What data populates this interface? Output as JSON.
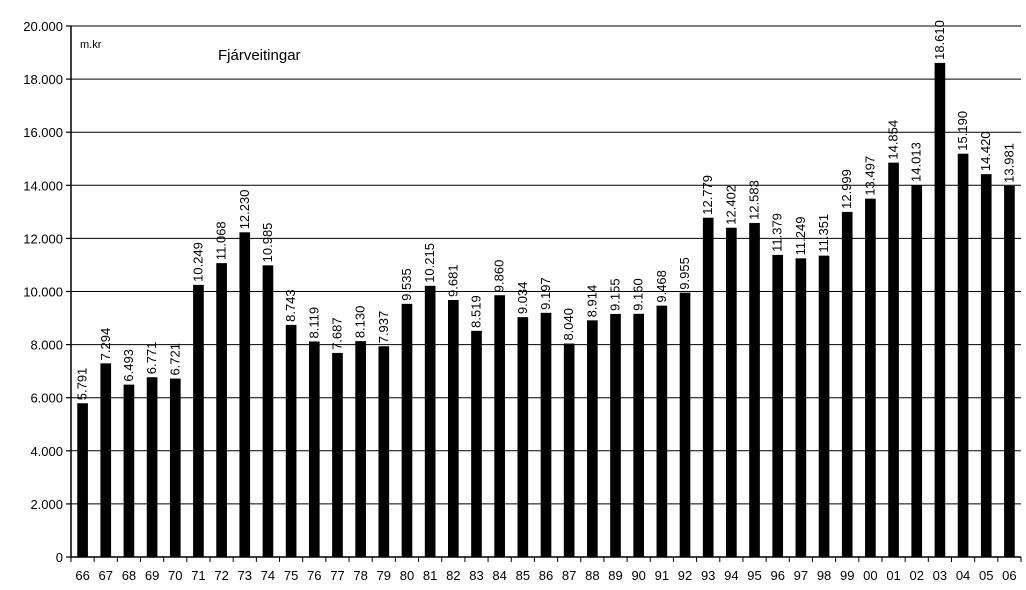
{
  "chart_data": {
    "type": "bar",
    "title": "Fjárveitingar",
    "unit": "m.kr",
    "xlabel": "",
    "ylabel": "",
    "ylim": [
      0,
      20000
    ],
    "yticks": [
      "0",
      "2.000",
      "4.000",
      "6.000",
      "8.000",
      "10.000",
      "12.000",
      "14.000",
      "16.000",
      "18.000",
      "20.000"
    ],
    "grid": true,
    "legend": "none",
    "categories": [
      "66",
      "67",
      "68",
      "69",
      "70",
      "71",
      "72",
      "73",
      "74",
      "75",
      "76",
      "77",
      "78",
      "79",
      "80",
      "81",
      "82",
      "83",
      "84",
      "85",
      "86",
      "87",
      "88",
      "89",
      "90",
      "91",
      "92",
      "93",
      "94",
      "95",
      "96",
      "97",
      "98",
      "99",
      "00",
      "01",
      "02",
      "03",
      "04",
      "05",
      "06"
    ],
    "values": [
      5791,
      7294,
      6493,
      6771,
      6721,
      10249,
      11068,
      12230,
      10985,
      8743,
      8119,
      7687,
      8130,
      7937,
      9535,
      10215,
      9681,
      8519,
      9860,
      9034,
      9197,
      8040,
      8914,
      9155,
      9160,
      9468,
      9955,
      12779,
      12402,
      12583,
      11379,
      11249,
      11351,
      12999,
      13497,
      14854,
      14013,
      18610,
      15190,
      14420,
      13981
    ],
    "value_labels": [
      "5.791",
      "7.294",
      "6.493",
      "6.771",
      "6.721",
      "10.249",
      "11.068",
      "12.230",
      "10.985",
      "8.743",
      "8.119",
      "7.687",
      "8.130",
      "7.937",
      "9.535",
      "10.215",
      "9.681",
      "8.519",
      "9.860",
      "9.034",
      "9.197",
      "8.040",
      "8.914",
      "9.155",
      "9.160",
      "9.468",
      "9.955",
      "12.779",
      "12.402",
      "12.583",
      "11.379",
      "11.249",
      "11.351",
      "12.999",
      "13.497",
      "14.854",
      "14.013",
      "18.610",
      "15.190",
      "14.420",
      "13.981"
    ],
    "colors": {
      "bar": "#000000",
      "grid": "#000000",
      "background": "#ffffff"
    }
  }
}
